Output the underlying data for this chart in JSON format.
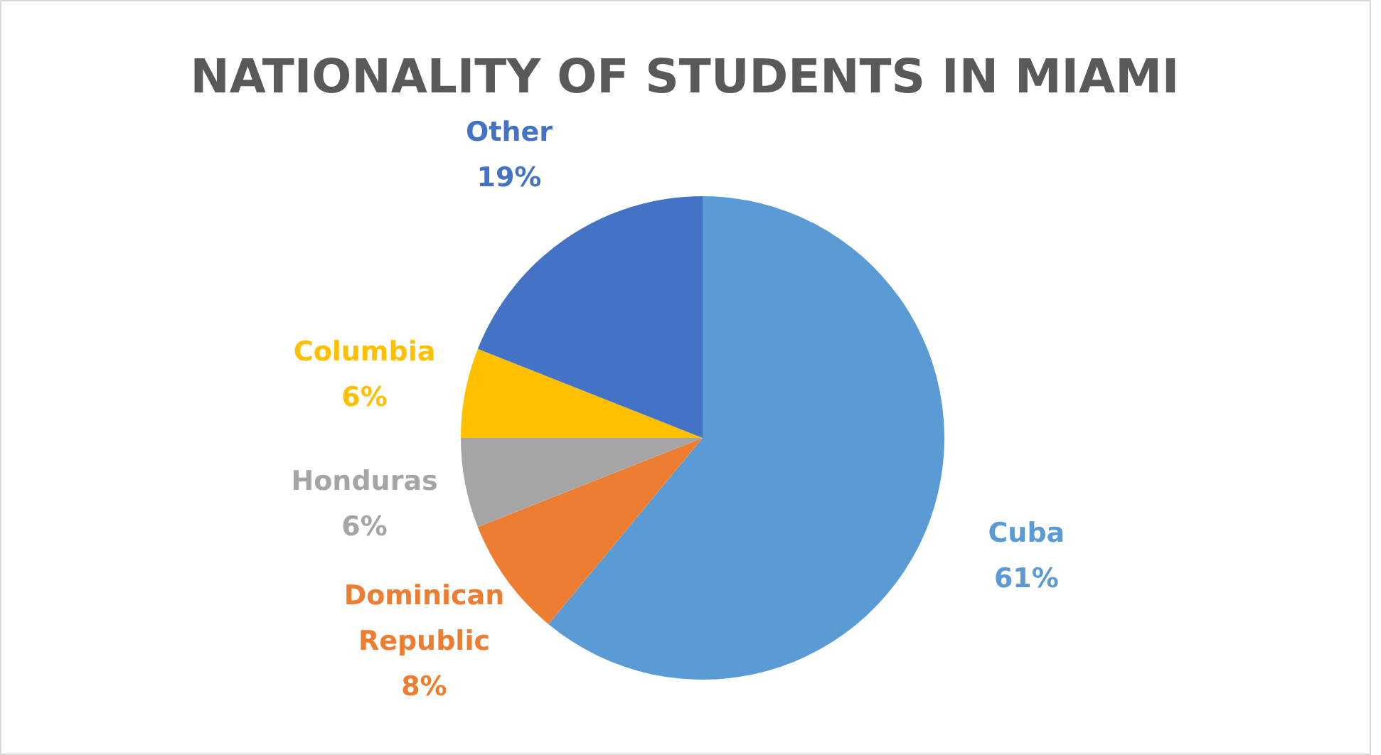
{
  "chart_data": {
    "type": "pie",
    "title": "NATIONALITY OF STUDENTS IN MIAMI",
    "categories": [
      "Cuba",
      "Dominican Republic",
      "Honduras",
      "Columbia",
      "Other"
    ],
    "values": [
      61,
      8,
      6,
      6,
      19
    ],
    "value_labels": [
      "61%",
      "8%",
      "6%",
      "6%",
      "19%"
    ],
    "colors": [
      "#5b9bd5",
      "#ed7d31",
      "#a5a5a5",
      "#ffc000",
      "#4472c4"
    ]
  }
}
